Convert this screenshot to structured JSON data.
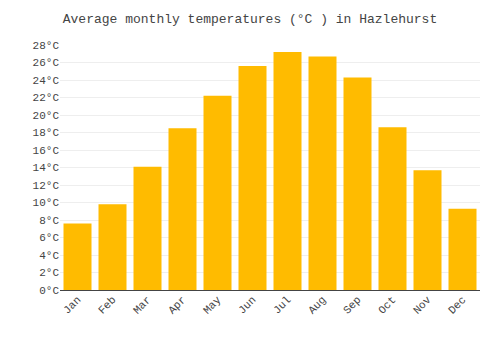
{
  "chart_data": {
    "type": "bar",
    "title": "Average monthly temperatures (°C ) in Hazlehurst",
    "categories": [
      "Jan",
      "Feb",
      "Mar",
      "Apr",
      "May",
      "Jun",
      "Jul",
      "Aug",
      "Sep",
      "Oct",
      "Nov",
      "Dec"
    ],
    "values": [
      7.6,
      9.8,
      14.1,
      18.5,
      22.2,
      25.6,
      27.2,
      26.7,
      24.3,
      18.6,
      13.7,
      9.3
    ],
    "color": "#FFBB00",
    "ylim": [
      0,
      28
    ],
    "yticks": [
      {
        "value": 0,
        "label": "0°C"
      },
      {
        "value": 2,
        "label": "2°C"
      },
      {
        "value": 4,
        "label": "4°C"
      },
      {
        "value": 6,
        "label": "6°C"
      },
      {
        "value": 8,
        "label": "8°C"
      },
      {
        "value": 10,
        "label": "10°C"
      },
      {
        "value": 12,
        "label": "12°C"
      },
      {
        "value": 14,
        "label": "14°C"
      },
      {
        "value": 16,
        "label": "16°C"
      },
      {
        "value": 18,
        "label": "18°C"
      },
      {
        "value": 20,
        "label": "20°C"
      },
      {
        "value": 22,
        "label": "22°C"
      },
      {
        "value": 24,
        "label": "24°C"
      },
      {
        "value": 26,
        "label": "26°C"
      },
      {
        "value": 28,
        "label": "28°C"
      }
    ],
    "grid": true
  }
}
